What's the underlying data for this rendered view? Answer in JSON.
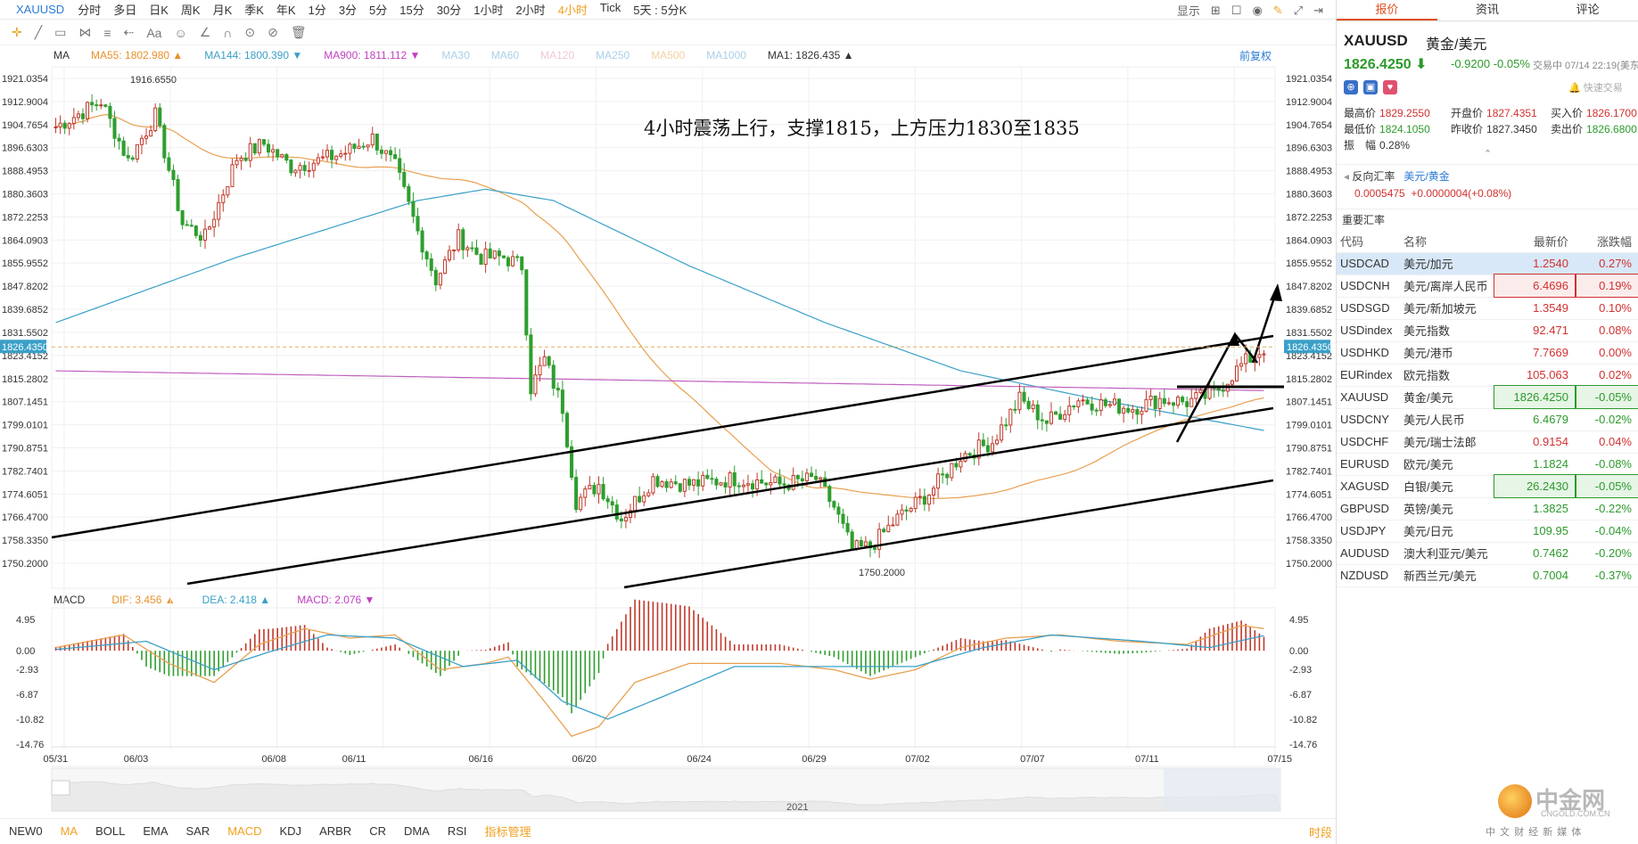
{
  "symbol": "XAUUSD",
  "timeframes": [
    "分时",
    "多日",
    "日K",
    "周K",
    "月K",
    "季K",
    "年K",
    "1分",
    "3分",
    "5分",
    "15分",
    "30分",
    "1小时",
    "2小时",
    "4小时",
    "Tick",
    "5天 : 5分K"
  ],
  "active_timeframe": "4小时",
  "top_right": {
    "display": "显示"
  },
  "ma_legend": [
    {
      "label": "MA",
      "color": "#333"
    },
    {
      "label": "MA55: 1802.980 ▲",
      "color": "#e8902a"
    },
    {
      "label": "MA144: 1800.390 ▼",
      "color": "#3aa0c8"
    },
    {
      "label": "MA900: 1811.112 ▼",
      "color": "#c040c0"
    },
    {
      "label": "MA30",
      "color": "#a8d0e8"
    },
    {
      "label": "MA60",
      "color": "#a8d0e8"
    },
    {
      "label": "MA120",
      "color": "#f0c8d0"
    },
    {
      "label": "MA250",
      "color": "#a8d0e8"
    },
    {
      "label": "MA500",
      "color": "#f0d0a0"
    },
    {
      "label": "MA1000",
      "color": "#a8d0e8"
    },
    {
      "label": "MA1: 1826.435 ▲",
      "color": "#333"
    }
  ],
  "fuquan": "前复权",
  "macd_legend": [
    {
      "label": "MACD",
      "color": "#333"
    },
    {
      "label": "DIF: 3.456 ▲",
      "color": "#e8902a"
    },
    {
      "label": "DEA: 2.418 ▲",
      "color": "#3aa0c8"
    },
    {
      "label": "MACD: 2.076 ▼",
      "color": "#c040c0"
    }
  ],
  "chart_data": {
    "type": "candlestick",
    "title": "4小时震荡上行，支撑1815，上方压力1830至1835",
    "y_ticks": [
      1921.0354,
      1912.9004,
      1904.7654,
      1896.6303,
      1888.4953,
      1880.3603,
      1872.2253,
      1864.0903,
      1855.9552,
      1847.8202,
      1839.6852,
      1831.5502,
      1823.4152,
      1815.2802,
      1807.1451,
      1799.0101,
      1790.8751,
      1782.7401,
      1774.6051,
      1766.47,
      1758.335,
      1750.2
    ],
    "ylim": [
      1750.2,
      1921.0354
    ],
    "current_price": "1826.4350",
    "high_label": "1916.6550",
    "low_label": "1750.2000",
    "x_ticks": [
      "05/31",
      "06/03",
      "06/08",
      "06/11",
      "06/16",
      "06/20",
      "06/24",
      "06/29",
      "07/02",
      "07/07",
      "07/11",
      "07/15"
    ],
    "year_label": "2021",
    "anchors": [
      {
        "t": 0,
        "p": 1904
      },
      {
        "t": 10,
        "p": 1913
      },
      {
        "t": 16,
        "p": 1892
      },
      {
        "t": 22,
        "p": 1908
      },
      {
        "t": 28,
        "p": 1870
      },
      {
        "t": 33,
        "p": 1865
      },
      {
        "t": 40,
        "p": 1893
      },
      {
        "t": 46,
        "p": 1898
      },
      {
        "t": 52,
        "p": 1890
      },
      {
        "t": 58,
        "p": 1892
      },
      {
        "t": 64,
        "p": 1895
      },
      {
        "t": 70,
        "p": 1900
      },
      {
        "t": 75,
        "p": 1890
      },
      {
        "t": 80,
        "p": 1867
      },
      {
        "t": 84,
        "p": 1850
      },
      {
        "t": 89,
        "p": 1865
      },
      {
        "t": 94,
        "p": 1858
      },
      {
        "t": 99,
        "p": 1858
      },
      {
        "t": 103,
        "p": 1855
      },
      {
        "t": 105,
        "p": 1812
      },
      {
        "t": 108,
        "p": 1822
      },
      {
        "t": 112,
        "p": 1805
      },
      {
        "t": 115,
        "p": 1772
      },
      {
        "t": 120,
        "p": 1778
      },
      {
        "t": 125,
        "p": 1766
      },
      {
        "t": 132,
        "p": 1780
      },
      {
        "t": 140,
        "p": 1778
      },
      {
        "t": 150,
        "p": 1780
      },
      {
        "t": 160,
        "p": 1778
      },
      {
        "t": 168,
        "p": 1780
      },
      {
        "t": 172,
        "p": 1770
      },
      {
        "t": 176,
        "p": 1755
      },
      {
        "t": 180,
        "p": 1756
      },
      {
        "t": 186,
        "p": 1766
      },
      {
        "t": 193,
        "p": 1775
      },
      {
        "t": 200,
        "p": 1788
      },
      {
        "t": 207,
        "p": 1793
      },
      {
        "t": 213,
        "p": 1808
      },
      {
        "t": 219,
        "p": 1800
      },
      {
        "t": 226,
        "p": 1808
      },
      {
        "t": 232,
        "p": 1806
      },
      {
        "t": 238,
        "p": 1805
      },
      {
        "t": 244,
        "p": 1808
      },
      {
        "t": 250,
        "p": 1807
      },
      {
        "t": 256,
        "p": 1810
      },
      {
        "t": 262,
        "p": 1820
      },
      {
        "t": 267,
        "p": 1826
      }
    ],
    "macd_ticks": [
      "4.95",
      "0.00",
      "-2.93",
      "-6.87",
      "-10.82",
      "-14.76"
    ],
    "macd_ylim": [
      -14.76,
      4.95
    ],
    "macd_dif": [
      {
        "t": 0,
        "v": 0.5
      },
      {
        "t": 15,
        "v": 2.5
      },
      {
        "t": 25,
        "v": -2
      },
      {
        "t": 35,
        "v": -5
      },
      {
        "t": 45,
        "v": 1
      },
      {
        "t": 55,
        "v": 3.5
      },
      {
        "t": 65,
        "v": 2
      },
      {
        "t": 75,
        "v": 2.5
      },
      {
        "t": 85,
        "v": -3
      },
      {
        "t": 95,
        "v": -2
      },
      {
        "t": 100,
        "v": -1
      },
      {
        "t": 108,
        "v": -8
      },
      {
        "t": 114,
        "v": -13.5
      },
      {
        "t": 120,
        "v": -12
      },
      {
        "t": 128,
        "v": -5
      },
      {
        "t": 140,
        "v": -2
      },
      {
        "t": 160,
        "v": -2
      },
      {
        "t": 172,
        "v": -3
      },
      {
        "t": 180,
        "v": -4.5
      },
      {
        "t": 190,
        "v": -3
      },
      {
        "t": 200,
        "v": 0.5
      },
      {
        "t": 210,
        "v": 2
      },
      {
        "t": 222,
        "v": 2.5
      },
      {
        "t": 235,
        "v": 1.5
      },
      {
        "t": 250,
        "v": 1
      },
      {
        "t": 262,
        "v": 4
      },
      {
        "t": 267,
        "v": 3.5
      }
    ],
    "macd_dea": [
      {
        "t": 0,
        "v": 0.2
      },
      {
        "t": 20,
        "v": 1.5
      },
      {
        "t": 35,
        "v": -3
      },
      {
        "t": 48,
        "v": 0
      },
      {
        "t": 60,
        "v": 2.5
      },
      {
        "t": 75,
        "v": 2
      },
      {
        "t": 90,
        "v": -2.5
      },
      {
        "t": 102,
        "v": -1.5
      },
      {
        "t": 112,
        "v": -8
      },
      {
        "t": 122,
        "v": -10.8
      },
      {
        "t": 135,
        "v": -7
      },
      {
        "t": 150,
        "v": -2.5
      },
      {
        "t": 175,
        "v": -2.5
      },
      {
        "t": 190,
        "v": -2.5
      },
      {
        "t": 205,
        "v": 0.5
      },
      {
        "t": 220,
        "v": 2.5
      },
      {
        "t": 240,
        "v": 1.5
      },
      {
        "t": 255,
        "v": 0.5
      },
      {
        "t": 267,
        "v": 2.4
      }
    ],
    "x_count": 268
  },
  "bottom_indicators": [
    "NEW0",
    "MA",
    "BOLL",
    "EMA",
    "SAR",
    "MACD",
    "KDJ",
    "ARBR",
    "CR",
    "DMA",
    "RSI",
    "指标管理"
  ],
  "bottom_active": [
    "MA",
    "MACD"
  ],
  "bottom_right": "时段",
  "panel": {
    "tabs": [
      "报价",
      "资讯",
      "评论"
    ],
    "symbol": "XAUUSD",
    "name": "黄金/美元",
    "price": "1826.4250",
    "change": "-0.9200",
    "change_pct": "-0.05%",
    "trade_time": "交易中 07/14 22:19(美东",
    "quick_trade": "快速交易",
    "stats": {
      "high_label": "最高价",
      "high": "1829.2550",
      "open_label": "开盘价",
      "open": "1827.4351",
      "buy_label": "买入价",
      "buy": "1826.1700",
      "low_label": "最低价",
      "low": "1824.1050",
      "prev_label": "昨收价",
      "prev": "1827.3450",
      "sell_label": "卖出价",
      "sell": "1826.6800",
      "amp_label": "振　幅",
      "amp": "0.28%"
    },
    "reverse_label": "反向汇率",
    "reverse_name": "美元/黄金",
    "reverse_value": "0.0005475",
    "reverse_change": "+0.0000004(+0.08%)",
    "section_title": "重要汇率",
    "headers": [
      "代码",
      "名称",
      "最新价",
      "涨跌幅"
    ],
    "rows": [
      {
        "code": "USDCAD",
        "name": "美元/加元",
        "price": "1.2540",
        "pct": "0.27%",
        "dir": "pos",
        "selected": true
      },
      {
        "code": "USDCNH",
        "name": "美元/离岸人民币",
        "price": "6.4696",
        "pct": "0.19%",
        "dir": "pos",
        "box": true
      },
      {
        "code": "USDSGD",
        "name": "美元/新加坡元",
        "price": "1.3549",
        "pct": "0.10%",
        "dir": "pos"
      },
      {
        "code": "USDindex",
        "name": "美元指数",
        "price": "92.471",
        "pct": "0.08%",
        "dir": "pos"
      },
      {
        "code": "USDHKD",
        "name": "美元/港币",
        "price": "7.7669",
        "pct": "0.00%",
        "dir": "pos"
      },
      {
        "code": "EURindex",
        "name": "欧元指数",
        "price": "105.063",
        "pct": "0.02%",
        "dir": "pos"
      },
      {
        "code": "XAUUSD",
        "name": "黄金/美元",
        "price": "1826.4250",
        "pct": "-0.05%",
        "dir": "neg",
        "box": true
      },
      {
        "code": "USDCNY",
        "name": "美元/人民币",
        "price": "6.4679",
        "pct": "-0.02%",
        "dir": "neg"
      },
      {
        "code": "USDCHF",
        "name": "美元/瑞士法郎",
        "price": "0.9154",
        "pct": "0.04%",
        "dir": "pos"
      },
      {
        "code": "EURUSD",
        "name": "欧元/美元",
        "price": "1.1824",
        "pct": "-0.08%",
        "dir": "neg"
      },
      {
        "code": "XAGUSD",
        "name": "白银/美元",
        "price": "26.2430",
        "pct": "-0.05%",
        "dir": "neg",
        "box": true
      },
      {
        "code": "GBPUSD",
        "name": "英镑/美元",
        "price": "1.3825",
        "pct": "-0.22%",
        "dir": "neg"
      },
      {
        "code": "USDJPY",
        "name": "美元/日元",
        "price": "109.95",
        "pct": "-0.04%",
        "dir": "neg"
      },
      {
        "code": "AUDUSD",
        "name": "澳大利亚元/美元",
        "price": "0.7462",
        "pct": "-0.20%",
        "dir": "neg"
      },
      {
        "code": "NZDUSD",
        "name": "新西兰元/美元",
        "price": "0.7004",
        "pct": "-0.37%",
        "dir": "neg"
      }
    ]
  },
  "logo": {
    "cn": "中金网",
    "en": "CNGOLD.COM.CN",
    "slogan": "中 文 财 经 新 媒 体"
  }
}
